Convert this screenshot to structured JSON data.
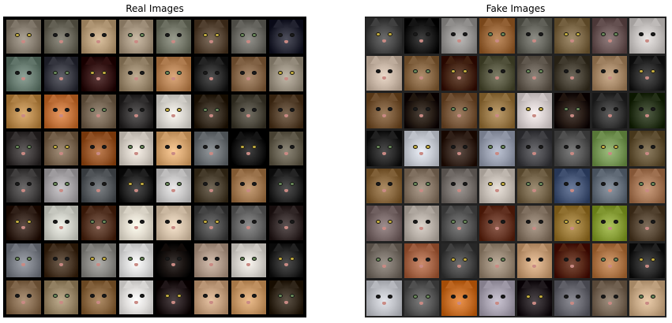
{
  "panels": {
    "real": {
      "title": "Real Images",
      "rows": 8,
      "cols": 8
    },
    "fake": {
      "title": "Fake Images",
      "rows": 8,
      "cols": 8
    }
  },
  "palette": {
    "real": [
      "#8a8174",
      "#6d6a5e",
      "#b99f7d",
      "#a89883",
      "#777a6c",
      "#5b4a3a",
      "#6f6e68",
      "#2c2d3a",
      "#6b7f74",
      "#3e3f48",
      "#3a1a1a",
      "#9c8a70",
      "#b98659",
      "#2e2e2e",
      "#8a6b4e",
      "#9d9485",
      "#b98b50",
      "#c5763f",
      "#7a6a58",
      "#3a3838",
      "#d9d6d0",
      "#3a3024",
      "#4f4b40",
      "#5a4632",
      "#403c3c",
      "#7e6a55",
      "#9a5a2e",
      "#d6cfc6",
      "#d8a874",
      "#6f7478",
      "#1e1e1e",
      "#6a6455",
      "#4a4848",
      "#a8a5a8",
      "#5a5e62",
      "#2a2a2a",
      "#c9c8c8",
      "#4f4535",
      "#a47c55",
      "#2e2e2e",
      "#3a2a22",
      "#cfd0c8",
      "#5a3a2a",
      "#e2dccf",
      "#d5c2ab",
      "#4e4e4e",
      "#6a6a6a",
      "#3a3030",
      "#7c8088",
      "#4c3a2a",
      "#8d8c88",
      "#dcdcdc",
      "#1a1412",
      "#b09a8a",
      "#d7d3cd",
      "#2c2c2c",
      "#8a7055",
      "#9c8a6c",
      "#8c6a45",
      "#e2e0de",
      "#2a2022",
      "#c4a080",
      "#c99a6a",
      "#3a3024"
    ],
    "fake": [
      "#4a4a4a",
      "#1e1e1e",
      "#9a9896",
      "#9c6a3e",
      "#6a6a62",
      "#7e6a4a",
      "#6e5a5a",
      "#c8c4c2",
      "#c8b6a6",
      "#8a6a48",
      "#4a2a1a",
      "#5a5a44",
      "#6a6258",
      "#4a4438",
      "#a88a6a",
      "#2e2e2e",
      "#7a5a3a",
      "#2a2018",
      "#7a5a3e",
      "#9a7a4a",
      "#d8d0d0",
      "#2a1e18",
      "#3a3a3a",
      "#2e3a22",
      "#2a2a2a",
      "#c8ccd4",
      "#3a2a22",
      "#9aa0b0",
      "#4a4a4e",
      "#5a5a5a",
      "#7a9a5a",
      "#6a5a3e",
      "#8a6a42",
      "#8a7a6a",
      "#7a7470",
      "#c8c0b8",
      "#7a6a50",
      "#4a5a7a",
      "#6a7480",
      "#a87a5a",
      "#7a6a6a",
      "#b8b0a8",
      "#5a5a5a",
      "#6a3a2a",
      "#8a7a6a",
      "#9a7a3a",
      "#8aa03a",
      "#5a4a38",
      "#7a726a",
      "#a8684a",
      "#4a4a4a",
      "#9a8a78",
      "#c8a07a",
      "#5a2a1a",
      "#b0784a",
      "#2a2a2a",
      "#c0c2c8",
      "#5a5a5a",
      "#c8702a",
      "#a8a2b0",
      "#2a2428",
      "#6a6a72",
      "#7a6a5a",
      "#c8aa88"
    ]
  }
}
